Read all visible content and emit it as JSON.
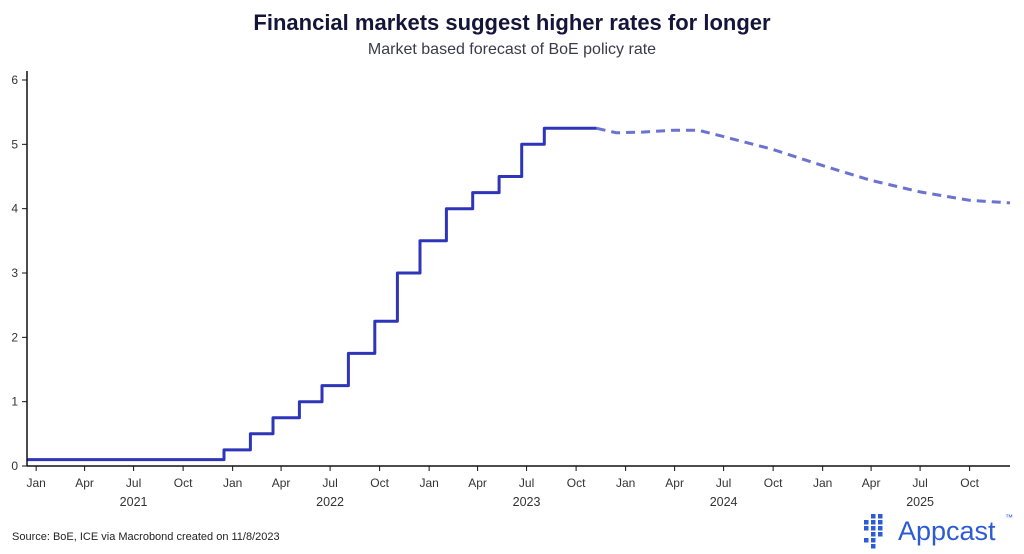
{
  "chart_data": {
    "type": "line",
    "title": "Financial markets suggest higher rates for longer",
    "subtitle": "Market based forecast of BoE policy rate",
    "xlabel": "",
    "ylabel": "",
    "ylim": [
      0,
      6
    ],
    "xlim": [
      "2020-12-15",
      "2025-12-15"
    ],
    "y_ticks": [
      0,
      1,
      2,
      3,
      4,
      5,
      6
    ],
    "x_tick_labels": [
      {
        "date": "2021-01-01",
        "label": "Jan"
      },
      {
        "date": "2021-04-01",
        "label": "Apr"
      },
      {
        "date": "2021-07-01",
        "label": "Jul"
      },
      {
        "date": "2021-10-01",
        "label": "Oct"
      },
      {
        "date": "2022-01-01",
        "label": "Jan"
      },
      {
        "date": "2022-04-01",
        "label": "Apr"
      },
      {
        "date": "2022-07-01",
        "label": "Jul"
      },
      {
        "date": "2022-10-01",
        "label": "Oct"
      },
      {
        "date": "2023-01-01",
        "label": "Jan"
      },
      {
        "date": "2023-04-01",
        "label": "Apr"
      },
      {
        "date": "2023-07-01",
        "label": "Jul"
      },
      {
        "date": "2023-10-01",
        "label": "Oct"
      },
      {
        "date": "2024-01-01",
        "label": "Jan"
      },
      {
        "date": "2024-04-01",
        "label": "Apr"
      },
      {
        "date": "2024-07-01",
        "label": "Jul"
      },
      {
        "date": "2024-10-01",
        "label": "Oct"
      },
      {
        "date": "2025-01-01",
        "label": "Jan"
      },
      {
        "date": "2025-04-01",
        "label": "Apr"
      },
      {
        "date": "2025-07-01",
        "label": "Jul"
      },
      {
        "date": "2025-10-01",
        "label": "Oct"
      }
    ],
    "year_labels": [
      {
        "date": "2021-07-01",
        "label": "2021"
      },
      {
        "date": "2022-07-01",
        "label": "2022"
      },
      {
        "date": "2023-07-01",
        "label": "2023"
      },
      {
        "date": "2024-07-01",
        "label": "2024"
      },
      {
        "date": "2025-07-01",
        "label": "2025"
      }
    ],
    "grid": false,
    "series": [
      {
        "style": "solid",
        "color": "#2f35b8",
        "points": [
          {
            "x": "2020-12-15",
            "y": 0.1
          },
          {
            "x": "2021-12-16",
            "y": 0.25
          },
          {
            "x": "2022-02-03",
            "y": 0.5
          },
          {
            "x": "2022-03-17",
            "y": 0.75
          },
          {
            "x": "2022-05-05",
            "y": 1.0
          },
          {
            "x": "2022-06-16",
            "y": 1.25
          },
          {
            "x": "2022-08-04",
            "y": 1.75
          },
          {
            "x": "2022-09-22",
            "y": 2.25
          },
          {
            "x": "2022-11-03",
            "y": 3.0
          },
          {
            "x": "2022-12-15",
            "y": 3.5
          },
          {
            "x": "2023-02-02",
            "y": 4.0
          },
          {
            "x": "2023-03-23",
            "y": 4.25
          },
          {
            "x": "2023-05-11",
            "y": 4.5
          },
          {
            "x": "2023-06-22",
            "y": 5.0
          },
          {
            "x": "2023-08-03",
            "y": 5.25
          },
          {
            "x": "2023-11-08",
            "y": 5.25
          }
        ]
      },
      {
        "style": "dashed",
        "color": "#6b72cf",
        "points": [
          {
            "x": "2023-11-08",
            "y": 5.25
          },
          {
            "x": "2023-12-15",
            "y": 5.18
          },
          {
            "x": "2024-02-01",
            "y": 5.19
          },
          {
            "x": "2024-04-01",
            "y": 5.22
          },
          {
            "x": "2024-05-15",
            "y": 5.22
          },
          {
            "x": "2024-07-01",
            "y": 5.12
          },
          {
            "x": "2024-10-01",
            "y": 4.92
          },
          {
            "x": "2025-01-01",
            "y": 4.67
          },
          {
            "x": "2025-04-01",
            "y": 4.44
          },
          {
            "x": "2025-07-01",
            "y": 4.26
          },
          {
            "x": "2025-10-01",
            "y": 4.13
          },
          {
            "x": "2025-12-15",
            "y": 4.09
          }
        ]
      }
    ]
  },
  "footer": {
    "source": "Source: BoE, ICE via Macrobond created on 11/8/2023"
  },
  "brand": {
    "name": "Appcast",
    "trademark": "™",
    "color": "#2d5bd6",
    "logo_icon": "dot-grid-icon"
  }
}
